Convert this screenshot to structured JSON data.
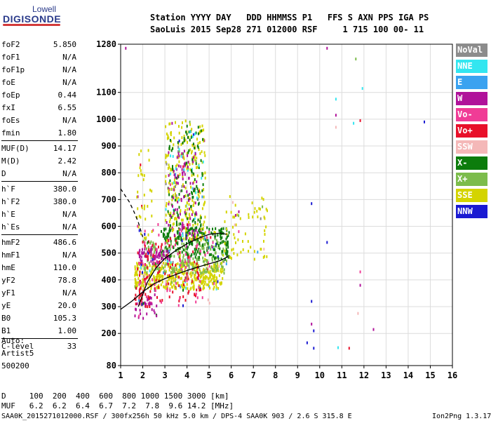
{
  "logo": {
    "line1": "Lowell",
    "line2": "DIGISONDE"
  },
  "header": {
    "line1": "Station YYYY DAY   DDD HHMMSS P1   FFS S AXN PPS IGA PS",
    "line2": "SaoLuis 2015 Sep28 271 012000 RSF     1 715 100 00- 11"
  },
  "params": [
    {
      "label": "foF2",
      "value": "5.850"
    },
    {
      "label": "foF1",
      "value": "N/A"
    },
    {
      "label": "foF1p",
      "value": "N/A"
    },
    {
      "label": "foE",
      "value": "N/A"
    },
    {
      "label": "foEp",
      "value": "0.44"
    },
    {
      "label": "fxI",
      "value": "6.55"
    },
    {
      "label": "foEs",
      "value": "N/A"
    },
    {
      "label": "fmin",
      "value": "1.80"
    },
    {
      "label": "MUF(D)",
      "value": "14.17"
    },
    {
      "label": "M(D)",
      "value": "2.42"
    },
    {
      "label": "D",
      "value": "N/A"
    },
    {
      "label": "h`F",
      "value": "380.0"
    },
    {
      "label": "h`F2",
      "value": "380.0"
    },
    {
      "label": "h`E",
      "value": "N/A"
    },
    {
      "label": "h`Es",
      "value": "N/A"
    },
    {
      "label": "hmF2",
      "value": "486.6"
    },
    {
      "label": "hmF1",
      "value": "N/A"
    },
    {
      "label": "hmE",
      "value": "110.0"
    },
    {
      "label": "yF2",
      "value": "78.8"
    },
    {
      "label": "yF1",
      "value": "N/A"
    },
    {
      "label": "yE",
      "value": "20.0"
    },
    {
      "label": "B0",
      "value": "105.3"
    },
    {
      "label": "B1",
      "value": "1.00"
    },
    {
      "label": "C-level",
      "value": "33"
    }
  ],
  "auto": {
    "line1": "Auto:",
    "line2": "Artist5",
    "line3": "500200"
  },
  "muf_table": {
    "d_line": "D     100  200  400  600  800 1000 1500 3000 [km]",
    "muf_line": "MUF   6.2  6.2  6.4  6.7  7.2  7.8  9.6 14.2 [MHz]"
  },
  "footer": {
    "left": "SAA0K_2015271012000.RSF / 300fx256h 50 kHz 5.0 km / DPS-4 SAA0K 903 / 2.6 S 315.8 E",
    "right": "Ion2Png 1.3.17"
  },
  "legend": [
    {
      "label": "NoVal",
      "color": "#8c8c8c"
    },
    {
      "label": "NNE",
      "color": "#33e6f0"
    },
    {
      "label": "E",
      "color": "#3aa2f0"
    },
    {
      "label": "W",
      "color": "#b0129a"
    },
    {
      "label": "Vo-",
      "color": "#f03c96"
    },
    {
      "label": "Vo+",
      "color": "#e8102a"
    },
    {
      "label": "SSW",
      "color": "#f4b8b8"
    },
    {
      "label": "X-",
      "color": "#0c7c0c"
    },
    {
      "label": "X+",
      "color": "#7cbc4c"
    },
    {
      "label": "SSE",
      "color": "#d4d400"
    },
    {
      "label": "NNW",
      "color": "#1a1ad2"
    }
  ],
  "chart_data": {
    "type": "scatter",
    "title": "",
    "xlabel": "",
    "ylabel": "",
    "xlim": [
      1,
      16
    ],
    "ylim": [
      80,
      1280
    ],
    "x_ticks": [
      1,
      2,
      3,
      4,
      5,
      6,
      7,
      8,
      9,
      10,
      11,
      12,
      13,
      14,
      15,
      16
    ],
    "y_ticks": [
      80,
      200,
      300,
      400,
      500,
      600,
      700,
      800,
      900,
      1000,
      1100,
      1280
    ],
    "grid": true,
    "clusters": [
      {
        "series": "SSE",
        "x": [
          1.6,
          5.6
        ],
        "y": [
          370,
          470
        ],
        "n": 420
      },
      {
        "series": "X+",
        "x": [
          2.0,
          5.8
        ],
        "y": [
          430,
          560
        ],
        "n": 260
      },
      {
        "series": "X-",
        "x": [
          2.8,
          5.9
        ],
        "y": [
          480,
          600
        ],
        "n": 220
      },
      {
        "series": "W",
        "x": [
          1.8,
          3.2
        ],
        "y": [
          470,
          520
        ],
        "n": 70
      },
      {
        "series": "Vo+",
        "x": [
          1.7,
          4.6
        ],
        "y": [
          320,
          560
        ],
        "n": 110
      },
      {
        "series": "Vo-",
        "x": [
          1.8,
          5.0
        ],
        "y": [
          300,
          620
        ],
        "n": 80
      },
      {
        "series": "SSE",
        "x": [
          3.0,
          4.8
        ],
        "y": [
          550,
          1000
        ],
        "n": 260
      },
      {
        "series": "X-",
        "x": [
          3.1,
          4.7
        ],
        "y": [
          550,
          980
        ],
        "n": 130
      },
      {
        "series": "W",
        "x": [
          3.1,
          4.4
        ],
        "y": [
          560,
          900
        ],
        "n": 90
      },
      {
        "series": "NNE",
        "x": [
          3.0,
          4.8
        ],
        "y": [
          700,
          960
        ],
        "n": 20
      },
      {
        "series": "SSE",
        "x": [
          5.6,
          7.6
        ],
        "y": [
          480,
          720
        ],
        "n": 70
      },
      {
        "series": "SSE",
        "x": [
          1.7,
          2.4
        ],
        "y": [
          560,
          900
        ],
        "n": 40
      },
      {
        "series": "W",
        "x": [
          1.6,
          2.6
        ],
        "y": [
          260,
          360
        ],
        "n": 35
      },
      {
        "series": "Vo+",
        "x": [
          1.6,
          2.3
        ],
        "y": [
          300,
          380
        ],
        "n": 30
      }
    ],
    "outliers": [
      {
        "x": 1.2,
        "y": 1270,
        "series": "W"
      },
      {
        "x": 10.3,
        "y": 1270,
        "series": "W"
      },
      {
        "x": 11.6,
        "y": 1230,
        "series": "X+"
      },
      {
        "x": 11.9,
        "y": 1120,
        "series": "NNE"
      },
      {
        "x": 10.7,
        "y": 1080,
        "series": "NNE"
      },
      {
        "x": 10.7,
        "y": 1020,
        "series": "W"
      },
      {
        "x": 10.7,
        "y": 975,
        "series": "SSW"
      },
      {
        "x": 11.8,
        "y": 1000,
        "series": "Vo+"
      },
      {
        "x": 11.5,
        "y": 990,
        "series": "NNE"
      },
      {
        "x": 14.7,
        "y": 995,
        "series": "NNW"
      },
      {
        "x": 9.6,
        "y": 690,
        "series": "NNW"
      },
      {
        "x": 10.3,
        "y": 545,
        "series": "NNW"
      },
      {
        "x": 11.8,
        "y": 435,
        "series": "Vo-"
      },
      {
        "x": 11.8,
        "y": 385,
        "series": "W"
      },
      {
        "x": 9.6,
        "y": 325,
        "series": "NNW"
      },
      {
        "x": 11.7,
        "y": 280,
        "series": "SSW"
      },
      {
        "x": 9.6,
        "y": 240,
        "series": "W"
      },
      {
        "x": 9.7,
        "y": 215,
        "series": "NNW"
      },
      {
        "x": 12.4,
        "y": 220,
        "series": "W"
      },
      {
        "x": 9.4,
        "y": 170,
        "series": "NNW"
      },
      {
        "x": 9.7,
        "y": 150,
        "series": "NNW"
      },
      {
        "x": 10.8,
        "y": 152,
        "series": "NNE"
      },
      {
        "x": 11.3,
        "y": 150,
        "series": "Vo+"
      }
    ],
    "curves": [
      {
        "name": "profile",
        "style": "solid",
        "x": [
          1.0,
          1.5,
          2.0,
          2.5,
          3.0,
          3.5,
          4.0,
          4.5,
          5.0,
          5.5,
          5.85
        ],
        "y": [
          290,
          320,
          355,
          385,
          405,
          420,
          435,
          448,
          460,
          472,
          487
        ]
      },
      {
        "name": "trace",
        "style": "solid",
        "x": [
          1.8,
          2.2,
          2.6,
          3.0,
          3.5,
          4.0,
          4.5,
          5.0,
          5.5,
          5.8
        ],
        "y": [
          300,
          390,
          445,
          480,
          510,
          535,
          555,
          570,
          575,
          570
        ]
      },
      {
        "name": "extrapolation",
        "style": "dashed",
        "x": [
          1.0,
          1.2,
          1.4,
          1.6,
          1.8,
          2.0
        ],
        "y": [
          740,
          715,
          690,
          655,
          615,
          560
        ]
      }
    ]
  }
}
